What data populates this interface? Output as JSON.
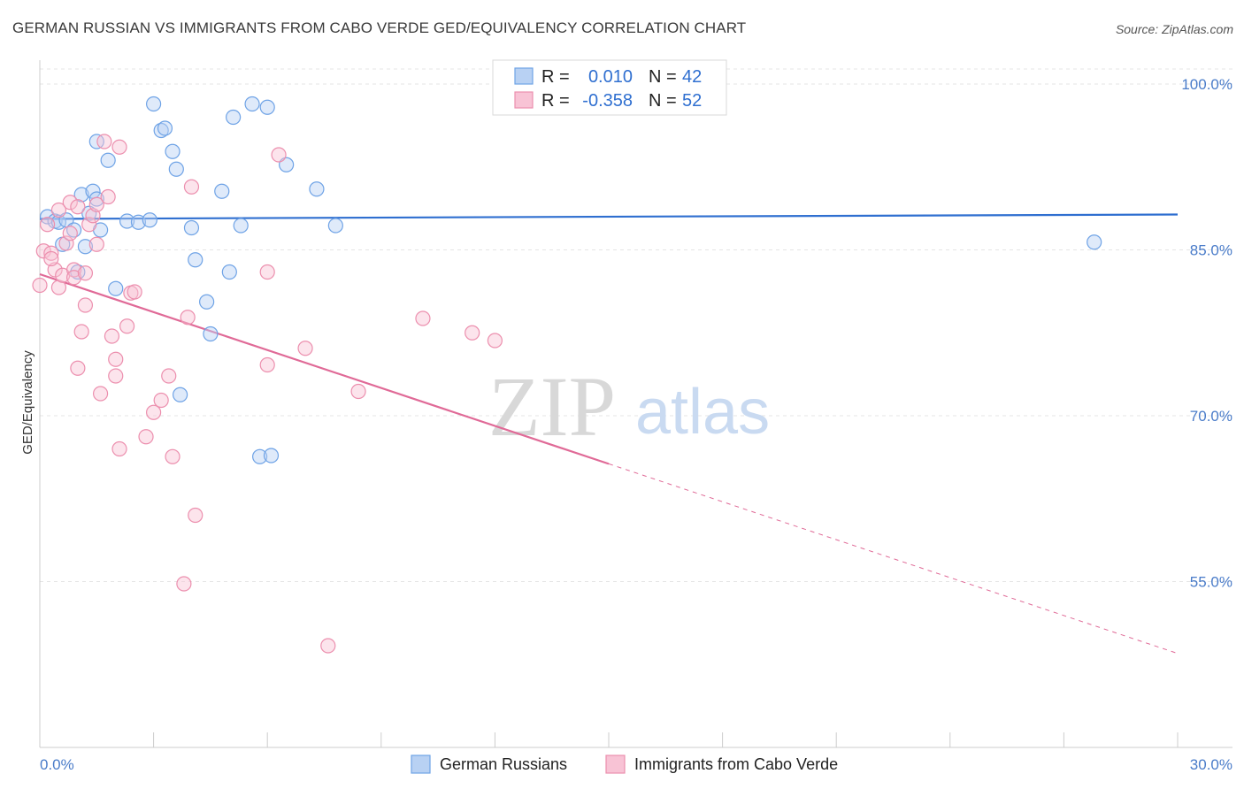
{
  "title": "GERMAN RUSSIAN VS IMMIGRANTS FROM CABO VERDE GED/EQUIVALENCY CORRELATION CHART",
  "source": "Source: ZipAtlas.com",
  "watermark": {
    "zip": "ZIP",
    "atlas": "atlas"
  },
  "colors": {
    "blue": "#6fa3e6",
    "blue_fill": "#b8d1f3",
    "blue_line": "#2f6fd0",
    "pink": "#ec8fae",
    "pink_fill": "#f8c3d5",
    "pink_line": "#e06a97",
    "grid": "#e5e5e5",
    "tick_text": "#4a7cc9"
  },
  "legend": {
    "rows": [
      {
        "r_label": "R =",
        "r_value": "0.010",
        "n_label": "N =",
        "n_value": "42",
        "series": "blue"
      },
      {
        "r_label": "R =",
        "r_value": "-0.358",
        "n_label": "N =",
        "n_value": "52",
        "series": "pink"
      }
    ]
  },
  "chart_data": {
    "type": "scatter",
    "ylabel": "GED/Equivalency",
    "xlim": [
      0,
      30
    ],
    "ylim": [
      40,
      102
    ],
    "x_tick_labels": [
      "0.0%",
      "30.0%"
    ],
    "y_ticks": [
      55,
      70,
      85,
      100
    ],
    "y_tick_labels": [
      "55.0%",
      "70.0%",
      "85.0%",
      "100.0%"
    ],
    "grid": true,
    "legend_position": "bottom",
    "series": [
      {
        "name": "German Russians",
        "color": "blue",
        "trend": {
          "x0": 0,
          "y0": 87.8,
          "x1": 30,
          "y1": 88.2,
          "dashed_from": null
        },
        "points": [
          [
            0.2,
            88.0
          ],
          [
            0.4,
            87.6
          ],
          [
            0.5,
            87.5
          ],
          [
            0.6,
            85.5
          ],
          [
            0.7,
            87.7
          ],
          [
            0.9,
            86.8
          ],
          [
            1.0,
            83.0
          ],
          [
            1.1,
            90.0
          ],
          [
            1.2,
            85.3
          ],
          [
            1.3,
            88.3
          ],
          [
            1.4,
            90.3
          ],
          [
            1.5,
            89.6
          ],
          [
            1.5,
            94.8
          ],
          [
            1.6,
            86.8
          ],
          [
            1.8,
            93.1
          ],
          [
            2.0,
            81.5
          ],
          [
            2.3,
            87.6
          ],
          [
            2.6,
            87.5
          ],
          [
            2.9,
            87.7
          ],
          [
            3.0,
            98.2
          ],
          [
            3.2,
            95.8
          ],
          [
            3.3,
            96.0
          ],
          [
            3.5,
            93.9
          ],
          [
            3.6,
            92.3
          ],
          [
            3.7,
            71.9
          ],
          [
            4.0,
            87.0
          ],
          [
            4.1,
            84.1
          ],
          [
            4.4,
            80.3
          ],
          [
            4.5,
            77.4
          ],
          [
            4.8,
            90.3
          ],
          [
            5.0,
            83.0
          ],
          [
            5.1,
            97.0
          ],
          [
            5.3,
            87.2
          ],
          [
            5.6,
            98.2
          ],
          [
            5.8,
            66.3
          ],
          [
            6.0,
            97.9
          ],
          [
            6.1,
            66.4
          ],
          [
            6.5,
            92.7
          ],
          [
            7.3,
            90.5
          ],
          [
            7.8,
            87.2
          ],
          [
            12.4,
            99.7
          ],
          [
            27.8,
            85.7
          ]
        ]
      },
      {
        "name": "Immigrants from Cabo Verde",
        "color": "pink",
        "trend": {
          "x0": 0,
          "y0": 82.8,
          "x1": 30,
          "y1": 48.5,
          "dashed_from": 15.0
        },
        "points": [
          [
            0.0,
            81.8
          ],
          [
            0.1,
            84.9
          ],
          [
            0.2,
            87.3
          ],
          [
            0.3,
            84.7
          ],
          [
            0.4,
            83.2
          ],
          [
            0.5,
            81.6
          ],
          [
            0.5,
            88.6
          ],
          [
            0.6,
            82.7
          ],
          [
            0.7,
            85.6
          ],
          [
            0.8,
            89.3
          ],
          [
            0.9,
            83.2
          ],
          [
            0.9,
            82.5
          ],
          [
            1.0,
            88.9
          ],
          [
            1.0,
            74.3
          ],
          [
            1.1,
            77.6
          ],
          [
            1.2,
            80.0
          ],
          [
            1.3,
            87.3
          ],
          [
            1.4,
            88.1
          ],
          [
            1.5,
            85.5
          ],
          [
            1.5,
            89.1
          ],
          [
            1.6,
            72.0
          ],
          [
            1.7,
            94.8
          ],
          [
            1.8,
            89.8
          ],
          [
            1.9,
            77.2
          ],
          [
            2.0,
            75.1
          ],
          [
            2.0,
            73.6
          ],
          [
            2.1,
            67.0
          ],
          [
            2.1,
            94.3
          ],
          [
            2.3,
            78.1
          ],
          [
            2.4,
            81.1
          ],
          [
            2.5,
            81.2
          ],
          [
            2.8,
            68.1
          ],
          [
            3.0,
            70.3
          ],
          [
            3.2,
            71.4
          ],
          [
            3.4,
            73.6
          ],
          [
            3.5,
            66.3
          ],
          [
            3.8,
            54.8
          ],
          [
            3.9,
            78.9
          ],
          [
            4.0,
            90.7
          ],
          [
            4.1,
            61.0
          ],
          [
            6.0,
            83.0
          ],
          [
            6.0,
            74.6
          ],
          [
            6.3,
            93.6
          ],
          [
            7.0,
            76.1
          ],
          [
            7.6,
            49.2
          ],
          [
            8.4,
            72.2
          ],
          [
            10.1,
            78.8
          ],
          [
            11.4,
            77.5
          ],
          [
            12.0,
            76.8
          ],
          [
            1.2,
            82.9
          ],
          [
            0.3,
            84.2
          ],
          [
            0.8,
            86.5
          ]
        ]
      }
    ]
  }
}
